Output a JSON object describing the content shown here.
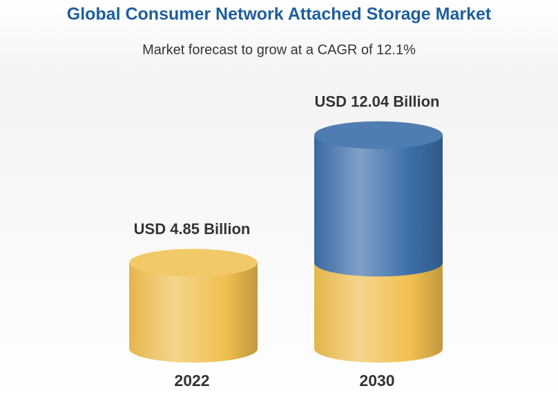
{
  "chart_data": {
    "type": "cylinder",
    "title": "Global Consumer Network Attached Storage Market",
    "subtitle": "Market forecast to grow at a CAGR of 12.1%",
    "categories": [
      "2022",
      "2030"
    ],
    "values": [
      4.85,
      12.04
    ],
    "value_labels": [
      "USD 4.85 Billion",
      "USD 12.04 Billion"
    ],
    "colors": [
      "#f0bf4f",
      "#3b6fa9"
    ]
  }
}
